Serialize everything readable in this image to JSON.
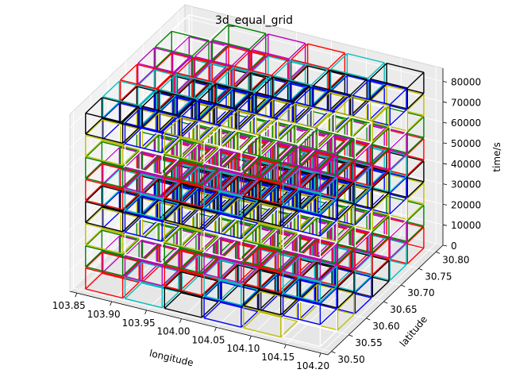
{
  "chart_data": {
    "type": "3d-wireframe",
    "title": "3d_equal_grid",
    "xlabel": "longitude",
    "ylabel": "latitude",
    "zlabel": "time/s",
    "xlim": [
      103.84,
      104.21
    ],
    "ylim": [
      30.49,
      30.82
    ],
    "zlim": [
      0,
      86400
    ],
    "grid": true,
    "x_ticks": [
      "103.85",
      "103.90",
      "103.95",
      "104.00",
      "104.05",
      "104.10",
      "104.15",
      "104.20"
    ],
    "y_ticks": [
      "30.50",
      "30.55",
      "30.60",
      "30.65",
      "30.70",
      "30.75",
      "30.80"
    ],
    "z_ticks": [
      "0",
      "10000",
      "20000",
      "30000",
      "40000",
      "50000",
      "60000",
      "70000",
      "80000"
    ],
    "grid_cells": {
      "x_count": 6,
      "y_count": 6,
      "z_count": 8
    },
    "edge_colors": [
      "#ff0000",
      "#0000ff",
      "#008000",
      "#00bfbf",
      "#bfbf00",
      "#bf00bf",
      "#000000",
      "#ffffff"
    ]
  }
}
